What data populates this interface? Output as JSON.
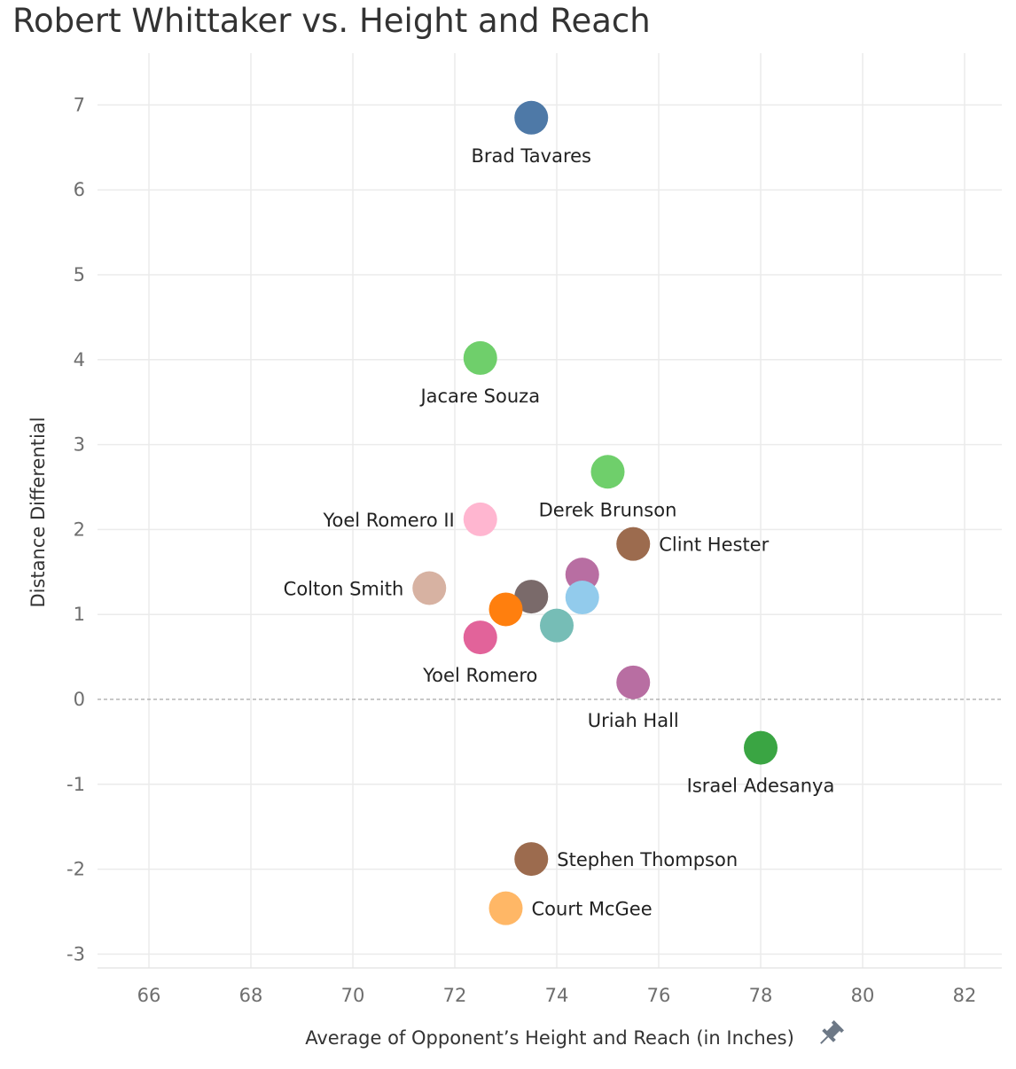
{
  "title": "Robert Whittaker vs. Height and Reach",
  "chart_data": {
    "type": "scatter",
    "title": "Robert Whittaker vs. Height and Reach",
    "xlabel": "Average of Opponent’s Height and Reach (in Inches)",
    "ylabel": "Distance Differential",
    "xlim": [
      65,
      83
    ],
    "ylim": [
      -3.2,
      7.5
    ],
    "xticks": [
      66,
      68,
      70,
      72,
      74,
      76,
      78,
      80,
      82
    ],
    "yticks": [
      -3,
      -2,
      -1,
      0,
      1,
      2,
      3,
      4,
      5,
      6,
      7
    ],
    "grid": true,
    "zero_reference_line": true,
    "legend": "none",
    "pin_icon": "pin-icon",
    "points": [
      {
        "x": 73.5,
        "y": 6.85,
        "label": "Brad Tavares",
        "label_pos": "below",
        "color": "#4e79a7"
      },
      {
        "x": 72.5,
        "y": 4.02,
        "label": "Jacare Souza",
        "label_pos": "below",
        "color": "#6fcf6b"
      },
      {
        "x": 75.0,
        "y": 2.68,
        "label": "Derek Brunson",
        "label_pos": "below",
        "color": "#6fcf6b"
      },
      {
        "x": 72.5,
        "y": 2.12,
        "label": "Yoel Romero II",
        "label_pos": "left",
        "color": "#ffb6d0"
      },
      {
        "x": 75.5,
        "y": 1.83,
        "label": "Clint Hester",
        "label_pos": "right",
        "color": "#9c6b4e"
      },
      {
        "x": 74.5,
        "y": 1.47,
        "label": "",
        "label_pos": "none",
        "color": "#b86ea2"
      },
      {
        "x": 71.5,
        "y": 1.31,
        "label": "Colton Smith",
        "label_pos": "left",
        "color": "#d7b2a2"
      },
      {
        "x": 73.5,
        "y": 1.21,
        "label": "",
        "label_pos": "none",
        "color": "#7a6a6a"
      },
      {
        "x": 74.5,
        "y": 1.2,
        "label": "",
        "label_pos": "none",
        "color": "#92cbec"
      },
      {
        "x": 73.0,
        "y": 1.06,
        "label": "",
        "label_pos": "none",
        "color": "#ff7f0e"
      },
      {
        "x": 74.0,
        "y": 0.87,
        "label": "",
        "label_pos": "none",
        "color": "#76bdb6"
      },
      {
        "x": 72.5,
        "y": 0.73,
        "label": "Yoel Romero",
        "label_pos": "below",
        "color": "#e2639a"
      },
      {
        "x": 75.5,
        "y": 0.2,
        "label": "Uriah Hall",
        "label_pos": "below",
        "color": "#b86ea2"
      },
      {
        "x": 78.0,
        "y": -0.57,
        "label": "Israel Adesanya",
        "label_pos": "below",
        "color": "#3aa543"
      },
      {
        "x": 73.5,
        "y": -1.88,
        "label": "Stephen Thompson",
        "label_pos": "right",
        "color": "#9c6b4e"
      },
      {
        "x": 73.0,
        "y": -2.46,
        "label": "Court McGee",
        "label_pos": "right",
        "color": "#ffb766"
      }
    ]
  }
}
